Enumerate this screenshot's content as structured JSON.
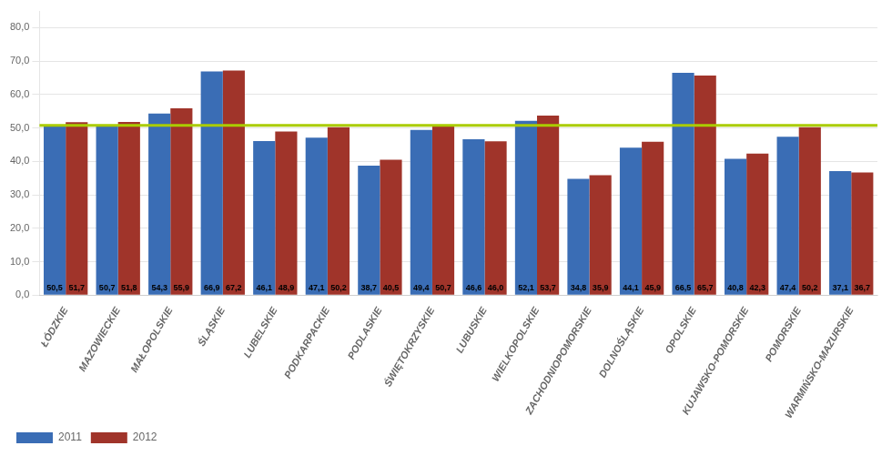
{
  "chart_data": {
    "type": "bar",
    "categories": [
      "ŁÓDZKIE",
      "MAZOWIECKIE",
      "MAŁOPOLSKIE",
      "ŚLĄSKIE",
      "LUBELSKIE",
      "PODKARPACKIE",
      "PODLASKIE",
      "ŚWIĘTOKRZYSKIE",
      "LUBUSKIE",
      "WIELKOPOLSKIE",
      "ZACHODNIOPOMORSKIE",
      "DOLNOŚLĄSKIE",
      "OPOLSKIE",
      "KUJAWSKO-POMORSKIE",
      "POMORSKIE",
      "WARMIŃSKO-MAZURSKIE"
    ],
    "series": [
      {
        "name": "2011",
        "color": "#3A6DB5",
        "values": [
          50.5,
          50.7,
          54.3,
          66.9,
          46.1,
          47.1,
          38.7,
          49.4,
          46.6,
          52.1,
          34.8,
          44.1,
          66.5,
          40.8,
          47.4,
          37.1
        ],
        "value_labels": [
          "50,5",
          "50,7",
          "54,3",
          "66,9",
          "46,1",
          "47,1",
          "38,7",
          "49,4",
          "46,6",
          "52,1",
          "34,8",
          "44,1",
          "66,5",
          "40,8",
          "47,4",
          "37,1"
        ]
      },
      {
        "name": "2012",
        "color": "#A0342A",
        "values": [
          51.7,
          51.8,
          55.9,
          67.2,
          48.9,
          50.2,
          40.5,
          50.7,
          46.0,
          53.7,
          35.9,
          45.9,
          65.7,
          42.3,
          50.2,
          36.7
        ],
        "value_labels": [
          "51,7",
          "51,8",
          "55,9",
          "67,2",
          "48,9",
          "50,2",
          "40,5",
          "50,7",
          "46,0",
          "53,7",
          "35,9",
          "45,9",
          "65,7",
          "42,3",
          "50,2",
          "36,7"
        ]
      }
    ],
    "reference_line": {
      "value": 50.8,
      "color": "#AACC00"
    },
    "ylim": [
      0,
      85
    ],
    "yticks": [
      {
        "value": 0,
        "label": "0,0"
      },
      {
        "value": 10,
        "label": "10,0"
      },
      {
        "value": 20,
        "label": "20,0"
      },
      {
        "value": 30,
        "label": "30,0"
      },
      {
        "value": 40,
        "label": "40,0"
      },
      {
        "value": 50,
        "label": "50,0"
      },
      {
        "value": 60,
        "label": "60,0"
      },
      {
        "value": 70,
        "label": "70,0"
      },
      {
        "value": 80,
        "label": "80,0"
      }
    ],
    "grid": "y",
    "legend": "lower left",
    "data_labels": true
  }
}
